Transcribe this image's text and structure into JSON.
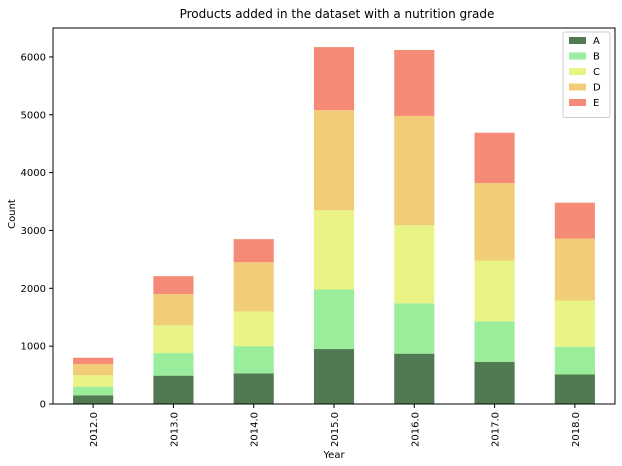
{
  "chart_data": {
    "type": "bar",
    "stacked": true,
    "title": "Products added in the dataset with a nutrition grade",
    "xlabel": "Year",
    "ylabel": "Count",
    "categories": [
      "2012.0",
      "2013.0",
      "2014.0",
      "2015.0",
      "2016.0",
      "2017.0",
      "2018.0"
    ],
    "series": [
      {
        "name": "A",
        "color": "#517a52",
        "values": [
          150,
          490,
          530,
          950,
          870,
          730,
          510
        ]
      },
      {
        "name": "B",
        "color": "#9aed9a",
        "values": [
          150,
          390,
          470,
          1030,
          870,
          700,
          480
        ]
      },
      {
        "name": "C",
        "color": "#e9f386",
        "values": [
          200,
          480,
          600,
          1370,
          1350,
          1050,
          800
        ]
      },
      {
        "name": "D",
        "color": "#f2cd78",
        "values": [
          190,
          540,
          850,
          1730,
          1890,
          1340,
          1070
        ]
      },
      {
        "name": "E",
        "color": "#f58a76",
        "values": [
          110,
          310,
          400,
          1090,
          1140,
          870,
          620
        ]
      }
    ],
    "ylim": [
      0,
      6500
    ],
    "yticks": [
      "0",
      "1000",
      "2000",
      "3000",
      "4000",
      "5000",
      "6000"
    ],
    "grid": false,
    "legend_position": "top-right"
  }
}
